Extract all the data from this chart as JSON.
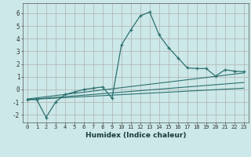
{
  "xlabel": "Humidex (Indice chaleur)",
  "ylabel": "",
  "bg_color": "#cce8e8",
  "grid_color": "#b0b0b0",
  "line_color": "#2d7070",
  "xlim": [
    -0.5,
    23.5
  ],
  "ylim": [
    -2.6,
    6.8
  ],
  "xticks": [
    0,
    1,
    2,
    3,
    4,
    5,
    6,
    7,
    8,
    9,
    10,
    11,
    12,
    13,
    14,
    15,
    16,
    17,
    18,
    19,
    20,
    21,
    22,
    23
  ],
  "yticks": [
    -2,
    -1,
    0,
    1,
    2,
    3,
    4,
    5,
    6
  ],
  "humidex_x": [
    0,
    1,
    2,
    3,
    4,
    5,
    6,
    7,
    8,
    9,
    10,
    11,
    12,
    13,
    14,
    15,
    16,
    17,
    18,
    19,
    20,
    21,
    22,
    23
  ],
  "main_y": [
    -0.8,
    -0.8,
    -2.2,
    -1.0,
    -0.4,
    -0.2,
    0.0,
    0.1,
    0.2,
    -0.7,
    3.5,
    4.7,
    5.8,
    6.1,
    4.3,
    3.3,
    2.5,
    1.7,
    1.65,
    1.65,
    1.05,
    1.55,
    1.45,
    1.4
  ],
  "line1_x": [
    0,
    23
  ],
  "line1_y": [
    -0.75,
    1.3
  ],
  "line2_x": [
    0,
    23
  ],
  "line2_y": [
    -0.8,
    0.55
  ],
  "line3_x": [
    0,
    23
  ],
  "line3_y": [
    -0.8,
    0.1
  ]
}
